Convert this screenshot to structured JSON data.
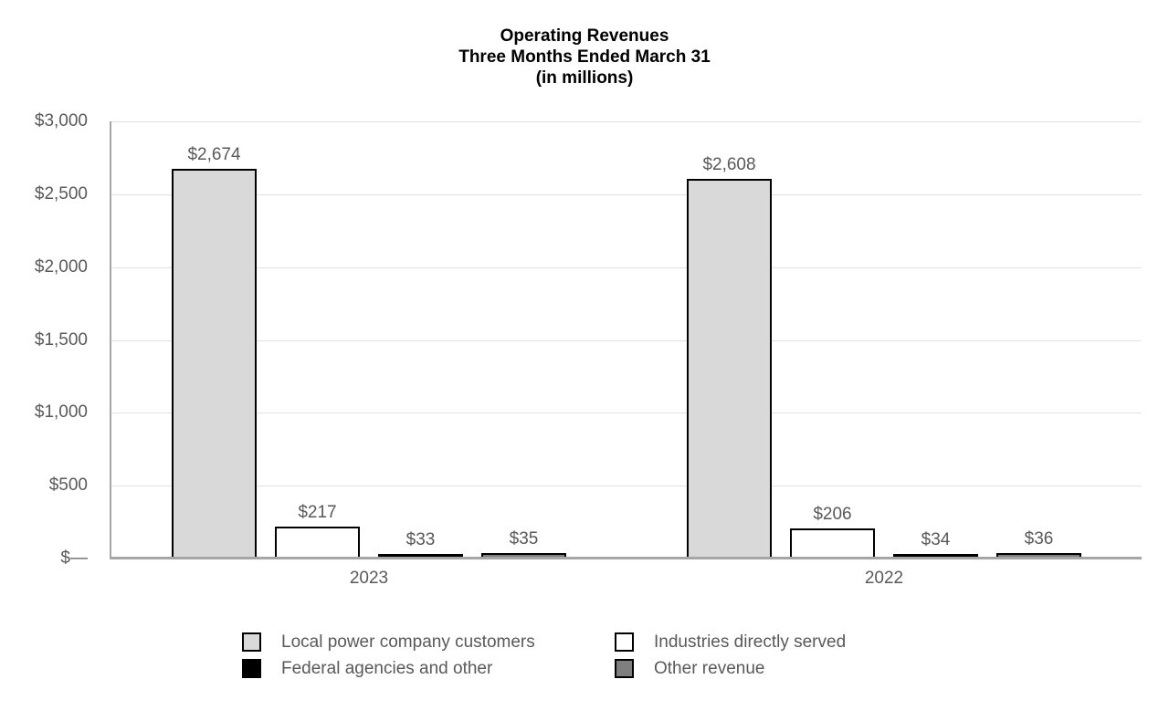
{
  "title": {
    "lines": [
      "Operating Revenues",
      "Three Months Ended March 31",
      "(in millions)"
    ]
  },
  "chart_data": {
    "type": "bar",
    "title": "Operating Revenues",
    "subtitle": "Three Months Ended March 31",
    "units": "(in millions)",
    "categories": [
      "2023",
      "2022"
    ],
    "series": [
      {
        "name": "Local power company customers",
        "color": "#d9d9d9",
        "values": [
          2674,
          2608
        ],
        "labels": [
          "$2,674",
          "$2,608"
        ]
      },
      {
        "name": "Industries directly served",
        "color": "#ffffff",
        "values": [
          217,
          206
        ],
        "labels": [
          "$217",
          "$206"
        ]
      },
      {
        "name": "Federal agencies and other",
        "color": "#000000",
        "values": [
          33,
          34
        ],
        "labels": [
          "$33",
          "$34"
        ]
      },
      {
        "name": "Other revenue",
        "color": "#7f7f7f",
        "values": [
          35,
          36
        ],
        "labels": [
          "$35",
          "$36"
        ]
      }
    ],
    "y_axis": {
      "min": 0,
      "max": 3000,
      "tick_interval": 500,
      "tick_labels": [
        "$3,000",
        "$2,500",
        "$2,000",
        "$1,500",
        "$1,000",
        "$500",
        "$—"
      ]
    },
    "grid": true,
    "legend_position": "bottom",
    "legend": [
      {
        "label": "Local power company customers",
        "color": "#d9d9d9"
      },
      {
        "label": "Industries directly served",
        "color": "#ffffff"
      },
      {
        "label": "Federal agencies and other",
        "color": "#000000"
      },
      {
        "label": "Other revenue",
        "color": "#7f7f7f"
      }
    ],
    "colors": {
      "text_gray": "#595959",
      "axis_line": "#a6a6a6",
      "gridline": "#e2e2e2",
      "bar_border": "#000000"
    }
  }
}
